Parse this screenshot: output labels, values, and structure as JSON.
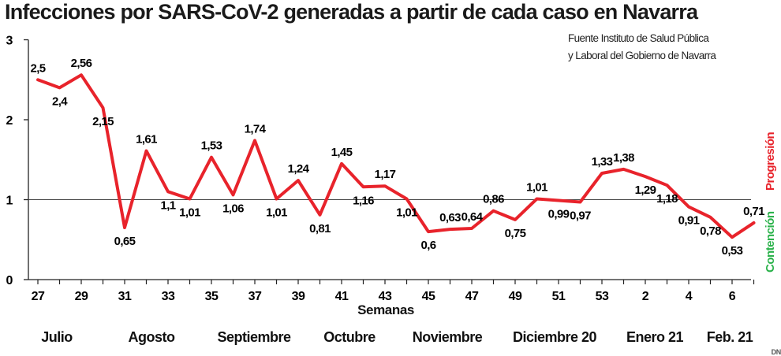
{
  "title": "Infecciones por SARS-CoV-2 generadas a partir de cada caso en Navarra",
  "source_line1": "Fuente Instituto de Salud Pública",
  "source_line2": "y Laboral del Gobierno de Navarra",
  "legend_high": "Progresión",
  "legend_low": "Contención",
  "logo": "DN",
  "colors": {
    "line": "#e8232b",
    "axis": "#222222",
    "progresion": "#e8232b",
    "contencion": "#2bb24b"
  },
  "chart_data": {
    "type": "line",
    "title": "Infecciones por SARS-CoV-2 generadas a partir de cada caso en Navarra",
    "xlabel": "Semanas",
    "ylabel": "",
    "ylim": [
      0,
      3
    ],
    "yticks": [
      0,
      1,
      2,
      3
    ],
    "reference_line": 1,
    "grid": false,
    "x_ticks": [
      "27",
      "29",
      "31",
      "33",
      "35",
      "37",
      "39",
      "41",
      "43",
      "45",
      "47",
      "49",
      "51",
      "53",
      "2",
      "4",
      "6"
    ],
    "months": [
      "Julio",
      "Agosto",
      "Septiembre",
      "Octubre",
      "Noviembre",
      "Diciembre 20",
      "Enero 21",
      "Feb. 21"
    ],
    "series": [
      {
        "values": [
          2.5,
          2.4,
          2.56,
          2.15,
          0.65,
          1.61,
          1.1,
          1.01,
          1.53,
          1.06,
          1.74,
          1.01,
          1.24,
          0.81,
          1.45,
          1.16,
          1.17,
          1.01,
          0.6,
          0.63,
          0.64,
          0.86,
          0.75,
          1.01,
          0.99,
          0.97,
          1.33,
          1.38,
          1.29,
          1.18,
          0.91,
          0.78,
          0.53,
          0.71
        ],
        "labels": [
          "2,5",
          "2,4",
          "2,56",
          "2,15",
          "0,65",
          "1,61",
          "1,1",
          "1,01",
          "1,53",
          "1,06",
          "1,74",
          "1,01",
          "1,24",
          "0,81",
          "1,45",
          "1,16",
          "1,17",
          "1,01",
          "0,6",
          "0,63",
          "0,64",
          "0,86",
          "0,75",
          "1,01",
          "0,99",
          "0,97",
          "1,33",
          "1,38",
          "1,29",
          "1,18",
          "0,91",
          "0,78",
          "0,53",
          "0,71"
        ]
      }
    ]
  }
}
